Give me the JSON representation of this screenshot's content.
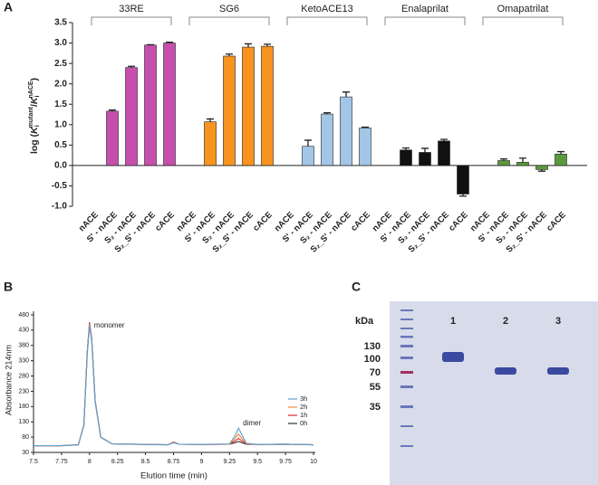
{
  "panel_labels": [
    "A",
    "B",
    "C"
  ],
  "chart_data": [
    {
      "type": "grouped_bar",
      "ylabel": [
        "log (",
        "K",
        "i",
        "mutant",
        "/",
        "K",
        "i",
        "nACE",
        ")"
      ],
      "ylim": [
        -1.0,
        3.5
      ],
      "yticks": [
        {
          "value": -1.0,
          "label": "-1.0"
        },
        {
          "value": -0.5,
          "label": "-0.5"
        },
        {
          "value": 0.0,
          "label": "0.0"
        },
        {
          "value": 0.5,
          "label": "0.5"
        },
        {
          "value": 1.0,
          "label": "1.0"
        },
        {
          "value": 1.5,
          "label": "1.5"
        },
        {
          "value": 2.0,
          "label": "2.0"
        },
        {
          "value": 2.5,
          "label": "2.5"
        },
        {
          "value": 3.0,
          "label": "3.0"
        },
        {
          "value": 3.5,
          "label": "3.5"
        }
      ],
      "groups": [
        {
          "name": "33RE",
          "color": "#c64fae",
          "categories": [
            "nACE",
            "S' - nACE",
            "S₂ - nACE",
            "S₂_S' - nACE",
            "cACE"
          ],
          "values": [
            0,
            1.33,
            2.4,
            2.95,
            3.0
          ],
          "errors": [
            null,
            0.03,
            0.03,
            0.01,
            0.02
          ]
        },
        {
          "name": "SG6",
          "color": "#f7931e",
          "categories": [
            "nACE",
            "S' - nACE",
            "S₂ - nACE",
            "S₂_S' - nACE",
            "cACE"
          ],
          "values": [
            0,
            1.07,
            2.68,
            2.9,
            2.92
          ],
          "errors": [
            null,
            0.07,
            0.05,
            0.08,
            0.05
          ]
        },
        {
          "name": "KetoACE13",
          "color": "#a3c5e6",
          "categories": [
            "nACE",
            "S' - nACE",
            "S₂ - nACE",
            "S₂_S' - nACE",
            "cACE"
          ],
          "values": [
            0,
            0.47,
            1.26,
            1.68,
            0.92
          ],
          "errors": [
            null,
            0.15,
            0.03,
            0.12,
            0.02
          ]
        },
        {
          "name": "Enalaprilat",
          "color": "#111111",
          "categories": [
            "nACE",
            "S' - nACE",
            "S₂ - nACE",
            "S₂_S' - nACE",
            "cACE"
          ],
          "values": [
            0,
            0.38,
            0.32,
            0.6,
            -0.7
          ],
          "errors": [
            null,
            0.05,
            0.1,
            0.04,
            0.05
          ]
        },
        {
          "name": "Omapatrilat",
          "color": "#5b9a3c",
          "categories": [
            "nACE",
            "S' - nACE",
            "S₂ - nACE",
            "S₂_S' - nACE",
            "cACE"
          ],
          "values": [
            0,
            0.12,
            0.08,
            -0.1,
            0.28
          ],
          "errors": [
            null,
            0.04,
            0.1,
            0.04,
            0.06
          ]
        }
      ]
    },
    {
      "type": "line",
      "xlabel": "Elution time (min)",
      "ylabel": "Absorbance 214nm",
      "x": [
        7.5,
        7.75,
        7.9,
        7.95,
        7.98,
        8.0,
        8.02,
        8.05,
        8.1,
        8.2,
        8.5,
        8.7,
        8.75,
        8.8,
        9.0,
        9.25,
        9.3,
        9.33,
        9.36,
        9.4,
        9.5,
        9.75,
        10
      ],
      "xlim": [
        7.5,
        10
      ],
      "xticks": [
        7.5,
        7.75,
        8,
        8.25,
        8.5,
        8.75,
        9,
        9.25,
        9.5,
        9.75,
        10
      ],
      "ylim": [
        30,
        480
      ],
      "yticks": [
        30,
        80,
        130,
        180,
        230,
        280,
        330,
        380,
        430,
        480
      ],
      "annotations": [
        "monomer",
        "dimer"
      ],
      "series": [
        {
          "name": "3h",
          "color": "#5a9fd4",
          "values": [
            52,
            52,
            55,
            118,
            352,
            445,
            392,
            196,
            80,
            58,
            56,
            55,
            62,
            57,
            56,
            58,
            85,
            110,
            88,
            60,
            56,
            57,
            55
          ]
        },
        {
          "name": "2h",
          "color": "#f08a3c",
          "values": [
            52,
            52,
            55,
            119,
            355,
            450,
            396,
            198,
            80,
            58,
            56,
            55,
            63,
            57,
            56,
            57,
            76,
            90,
            76,
            59,
            56,
            57,
            55
          ]
        },
        {
          "name": "1h",
          "color": "#d62a2a",
          "values": [
            52,
            52,
            55,
            120,
            358,
            452,
            398,
            199,
            80,
            58,
            56,
            55,
            64,
            57,
            56,
            57,
            68,
            76,
            68,
            58,
            56,
            57,
            55
          ]
        },
        {
          "name": "0h",
          "color": "#333333",
          "values": [
            52,
            52,
            55,
            120,
            360,
            455,
            400,
            200,
            80,
            58,
            56,
            55,
            62,
            57,
            56,
            57,
            62,
            66,
            62,
            57,
            56,
            57,
            55
          ]
        }
      ]
    }
  ],
  "gel": {
    "unit": "kDa",
    "markers": [
      "130",
      "100",
      "70",
      "55",
      "35"
    ],
    "lanes": [
      "1",
      "2",
      "3"
    ]
  }
}
